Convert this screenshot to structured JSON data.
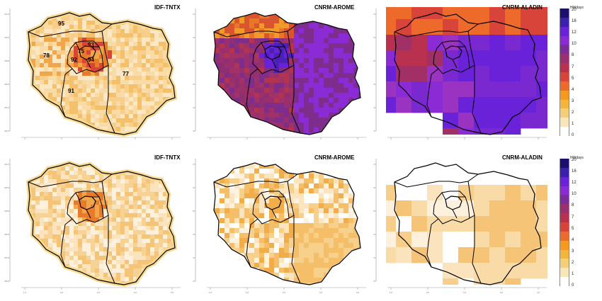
{
  "panels": [
    {
      "title": "IDF-TNTX",
      "scheme": "obs_top"
    },
    {
      "title": "CNRM-AROME",
      "scheme": "arome_top"
    },
    {
      "title": "CNRM-ALADIN",
      "scheme": "aladin_top"
    },
    {
      "title": "IDF-TNTX",
      "scheme": "obs_bottom"
    },
    {
      "title": "CNRM-AROME",
      "scheme": "arome_bottom"
    },
    {
      "title": "CNRM-ALADIN",
      "scheme": "aladin_bottom"
    }
  ],
  "departments": [
    "95",
    "78",
    "75",
    "93",
    "92",
    "94",
    "91",
    "77"
  ],
  "y_ticks": [
    "49.2",
    "49.0",
    "48.8",
    "48.6",
    "48.4",
    "48.2"
  ],
  "x_ticks": [
    "1.5",
    "2.0",
    "2.5",
    "3.0",
    "3.5"
  ],
  "legend": {
    "unit": "HWdays",
    "labels": [
      "20",
      "16",
      "12",
      "10",
      "8",
      "7",
      "5",
      "4",
      "3",
      "2",
      "1",
      "0"
    ],
    "colors": [
      "#1a0f6e",
      "#3b1fae",
      "#6a22d8",
      "#8a2bd6",
      "#7b2d9a",
      "#9b3070",
      "#b9314e",
      "#d8433a",
      "#ee6a2a",
      "#f59a1f",
      "#f3b53c",
      "#f5cf78",
      "#f9e6b8",
      "#ffffff"
    ]
  }
}
